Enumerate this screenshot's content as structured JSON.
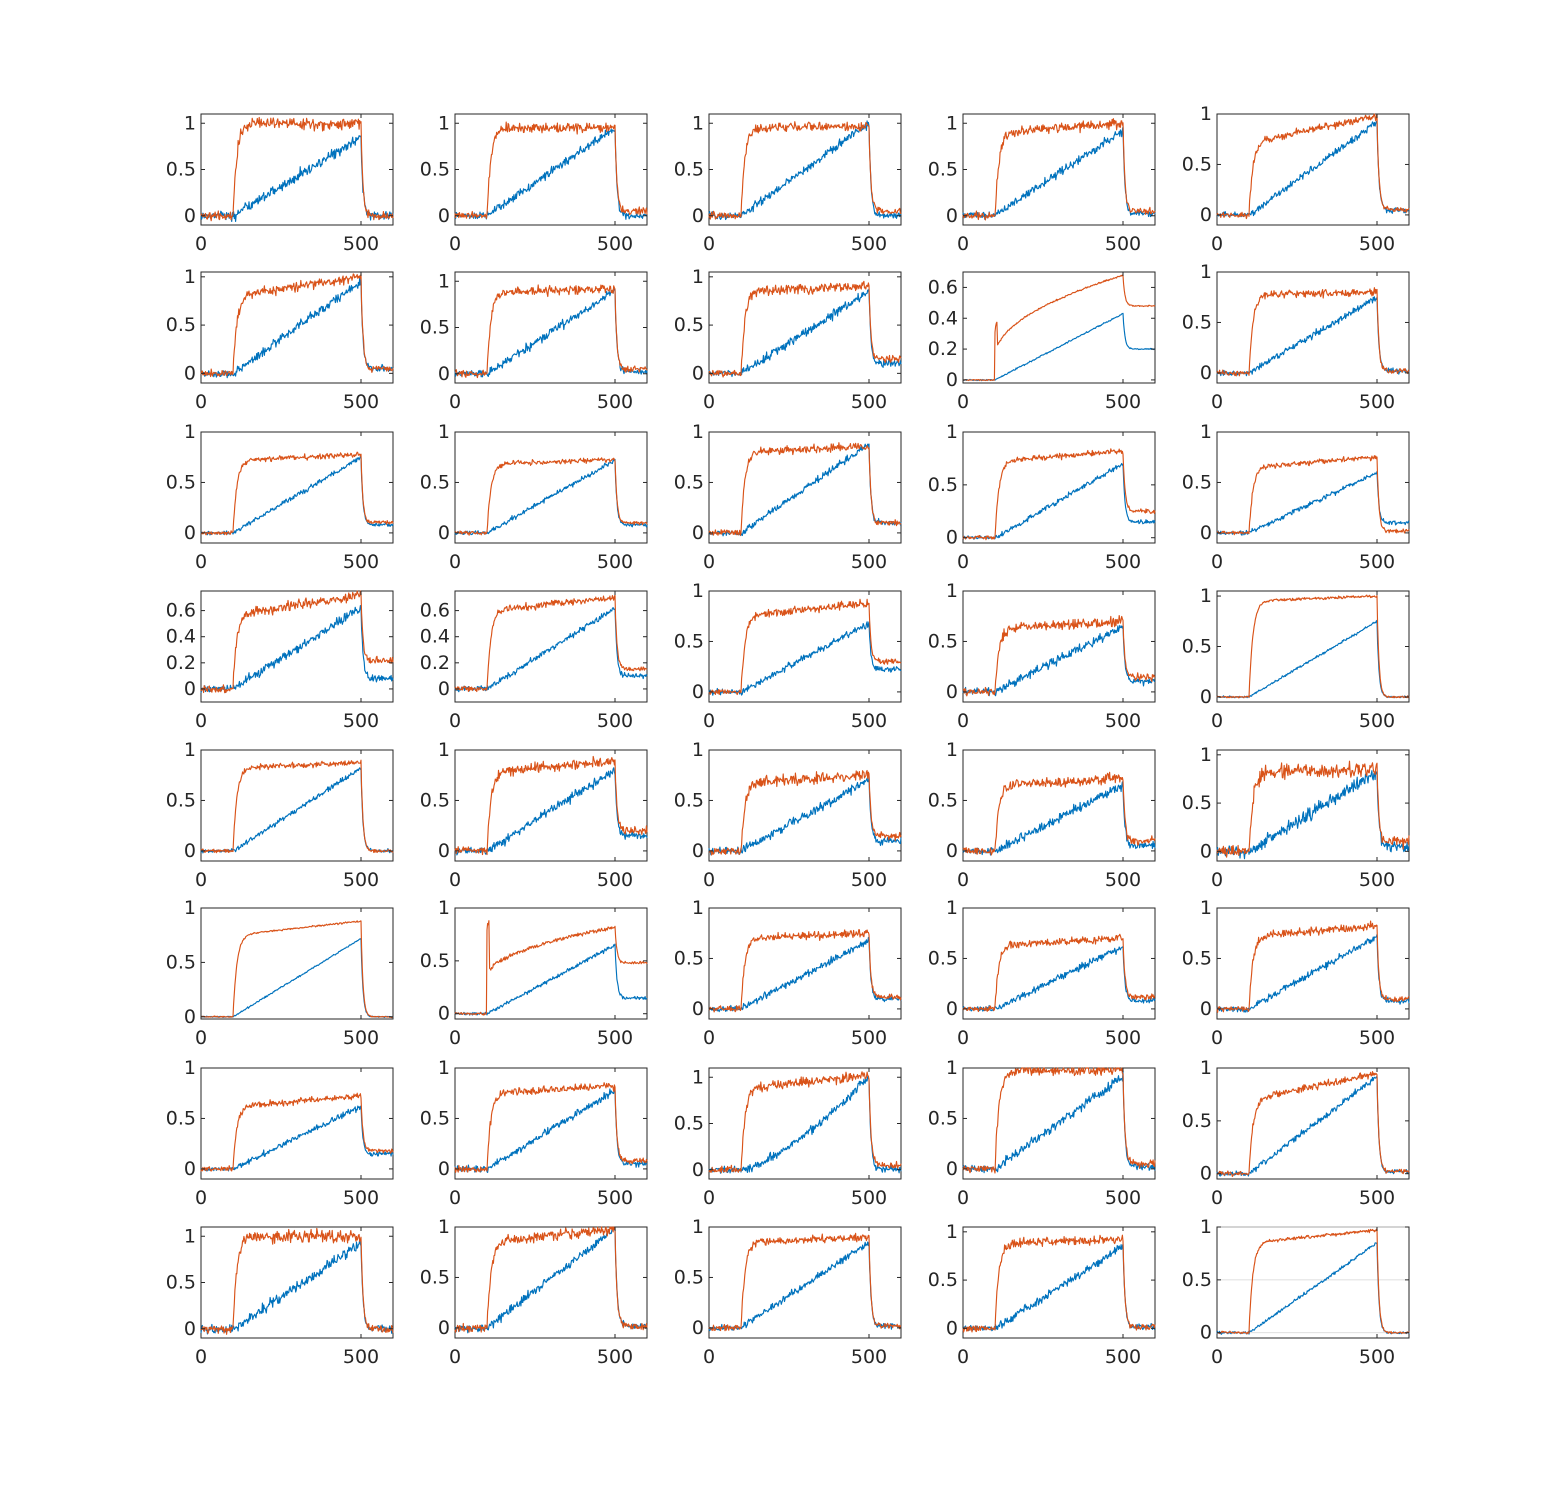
{
  "colors": {
    "series_1": "#0072BD",
    "series_2": "#D95319",
    "axes": "#262626",
    "grid": "#d4d4d4"
  },
  "chart_data": {
    "type": "line",
    "layout": "grid",
    "rows": 8,
    "cols": 5,
    "grid": false,
    "legend": "none",
    "x_range": [
      0,
      600
    ],
    "x_ticks": [
      0,
      500
    ],
    "x_tick_labels": [
      "0",
      "500"
    ],
    "series_names": [
      "",
      ""
    ],
    "common_shape": {
      "x_onset": 100,
      "x_offset": 500,
      "x_end": 600,
      "series_1": "linear ramp from onset to offset, then drop",
      "series_2": "fast rise at onset to a plateau, then drop at offset"
    },
    "panels": [
      {
        "ylim": [
          -0.1,
          1.1
        ],
        "yticks": [
          0,
          0.5,
          1
        ],
        "ytick_labels": [
          "0",
          "0.5",
          "1"
        ],
        "blue_end": 0.85,
        "red_level": 1.0,
        "red_end": 1.0,
        "blue_after": 0.0,
        "red_after": 0.0,
        "noise": 0.05
      },
      {
        "ylim": [
          -0.1,
          1.1
        ],
        "yticks": [
          0,
          0.5,
          1
        ],
        "ytick_labels": [
          "0",
          "0.5",
          "1"
        ],
        "blue_end": 0.95,
        "red_level": 0.95,
        "red_end": 0.95,
        "blue_after": 0.0,
        "red_after": 0.05,
        "noise": 0.04
      },
      {
        "ylim": [
          -0.1,
          1.1
        ],
        "yticks": [
          0,
          0.5,
          1
        ],
        "ytick_labels": [
          "0",
          "0.5",
          "1"
        ],
        "blue_end": 1.0,
        "red_level": 0.95,
        "red_end": 0.97,
        "blue_after": 0.0,
        "red_after": 0.05,
        "noise": 0.04
      },
      {
        "ylim": [
          -0.1,
          1.1
        ],
        "yticks": [
          0,
          0.5,
          1
        ],
        "ytick_labels": [
          "0",
          "0.5",
          "1"
        ],
        "blue_end": 0.92,
        "red_level": 0.9,
        "red_end": 1.0,
        "blue_after": 0.02,
        "red_after": 0.05,
        "noise": 0.04
      },
      {
        "ylim": [
          -0.1,
          1.0
        ],
        "yticks": [
          0,
          0.5,
          1
        ],
        "ytick_labels": [
          "0",
          "0.5",
          "1"
        ],
        "blue_end": 0.92,
        "red_level": 0.72,
        "red_end": 0.98,
        "blue_after": 0.05,
        "red_after": 0.05,
        "noise": 0.03
      },
      {
        "ylim": [
          -0.1,
          1.05
        ],
        "yticks": [
          0,
          0.5,
          1
        ],
        "ytick_labels": [
          "0",
          "0.5",
          "1"
        ],
        "blue_end": 0.95,
        "red_level": 0.8,
        "red_end": 1.0,
        "blue_after": 0.05,
        "red_after": 0.05,
        "noise": 0.04
      },
      {
        "ylim": [
          -0.1,
          1.1
        ],
        "yticks": [
          0,
          0.5,
          1
        ],
        "ytick_labels": [
          "0",
          "0.5",
          "1"
        ],
        "blue_end": 0.9,
        "red_level": 0.88,
        "red_end": 0.92,
        "blue_after": 0.02,
        "red_after": 0.05,
        "noise": 0.04
      },
      {
        "ylim": [
          -0.1,
          1.05
        ],
        "yticks": [
          0,
          0.5,
          1
        ],
        "ytick_labels": [
          "0",
          "0.5",
          "1"
        ],
        "blue_end": 0.85,
        "red_level": 0.85,
        "red_end": 0.9,
        "blue_after": 0.1,
        "red_after": 0.15,
        "noise": 0.04
      },
      {
        "ylim": [
          -0.02,
          0.7
        ],
        "yticks": [
          0,
          0.2,
          0.4,
          0.6
        ],
        "ytick_labels": [
          "0",
          "0.2",
          "0.4",
          "0.6"
        ],
        "blue_end": 0.43,
        "red_level": 0.15,
        "red_end": 0.68,
        "blue_after": 0.2,
        "red_after": 0.48,
        "noise": 0.004,
        "dip": 0.1
      },
      {
        "ylim": [
          -0.1,
          1.0
        ],
        "yticks": [
          0,
          0.5,
          1
        ],
        "ytick_labels": [
          "0",
          "0.5",
          "1"
        ],
        "blue_end": 0.75,
        "red_level": 0.78,
        "red_end": 0.8,
        "blue_after": 0.02,
        "red_after": 0.02,
        "noise": 0.03
      },
      {
        "ylim": [
          -0.1,
          1.0
        ],
        "yticks": [
          0,
          0.5,
          1
        ],
        "ytick_labels": [
          "0",
          "0.5",
          "1"
        ],
        "blue_end": 0.75,
        "red_level": 0.72,
        "red_end": 0.78,
        "blue_after": 0.08,
        "red_after": 0.1,
        "noise": 0.02
      },
      {
        "ylim": [
          -0.1,
          1.0
        ],
        "yticks": [
          0,
          0.5,
          1
        ],
        "ytick_labels": [
          "0",
          "0.5",
          "1"
        ],
        "blue_end": 0.72,
        "red_level": 0.68,
        "red_end": 0.73,
        "blue_after": 0.08,
        "red_after": 0.1,
        "noise": 0.02
      },
      {
        "ylim": [
          -0.1,
          1.0
        ],
        "yticks": [
          0,
          0.5,
          1
        ],
        "ytick_labels": [
          "0",
          "0.5",
          "1"
        ],
        "blue_end": 0.88,
        "red_level": 0.8,
        "red_end": 0.86,
        "blue_after": 0.1,
        "red_after": 0.1,
        "noise": 0.03
      },
      {
        "ylim": [
          -0.05,
          1.0
        ],
        "yticks": [
          0,
          0.5,
          1
        ],
        "ytick_labels": [
          "0",
          "0.5",
          "1"
        ],
        "blue_end": 0.7,
        "red_level": 0.72,
        "red_end": 0.82,
        "blue_after": 0.15,
        "red_after": 0.25,
        "noise": 0.02
      },
      {
        "ylim": [
          -0.1,
          1.0
        ],
        "yticks": [
          0,
          0.5,
          1
        ],
        "ytick_labels": [
          "0",
          "0.5",
          "1"
        ],
        "blue_end": 0.6,
        "red_level": 0.65,
        "red_end": 0.75,
        "blue_after": 0.1,
        "red_after": 0.02,
        "noise": 0.02
      },
      {
        "ylim": [
          -0.1,
          0.75
        ],
        "yticks": [
          0,
          0.2,
          0.4,
          0.6
        ],
        "ytick_labels": [
          "0",
          "0.2",
          "0.4",
          "0.6"
        ],
        "blue_end": 0.62,
        "red_level": 0.57,
        "red_end": 0.72,
        "blue_after": 0.08,
        "red_after": 0.22,
        "noise": 0.03
      },
      {
        "ylim": [
          -0.1,
          0.75
        ],
        "yticks": [
          0,
          0.2,
          0.4,
          0.6
        ],
        "ytick_labels": [
          "0",
          "0.2",
          "0.4",
          "0.6"
        ],
        "blue_end": 0.62,
        "red_level": 0.6,
        "red_end": 0.7,
        "blue_after": 0.1,
        "red_after": 0.15,
        "noise": 0.02
      },
      {
        "ylim": [
          -0.1,
          1.0
        ],
        "yticks": [
          0,
          0.5,
          1
        ],
        "ytick_labels": [
          "0",
          "0.5",
          "1"
        ],
        "blue_end": 0.68,
        "red_level": 0.75,
        "red_end": 0.88,
        "blue_after": 0.22,
        "red_after": 0.3,
        "noise": 0.03
      },
      {
        "ylim": [
          -0.1,
          1.0
        ],
        "yticks": [
          0,
          0.5,
          1
        ],
        "ytick_labels": [
          "0",
          "0.5",
          "1"
        ],
        "blue_end": 0.65,
        "red_level": 0.62,
        "red_end": 0.7,
        "blue_after": 0.1,
        "red_after": 0.15,
        "noise": 0.04
      },
      {
        "ylim": [
          -0.05,
          1.05
        ],
        "yticks": [
          0,
          0.5,
          1
        ],
        "ytick_labels": [
          "0",
          "0.5",
          "1"
        ],
        "blue_end": 0.75,
        "red_level": 0.95,
        "red_end": 1.0,
        "blue_after": 0.0,
        "red_after": 0.0,
        "noise": 0.01
      },
      {
        "ylim": [
          -0.1,
          1.0
        ],
        "yticks": [
          0,
          0.5,
          1
        ],
        "ytick_labels": [
          "0",
          "0.5",
          "1"
        ],
        "blue_end": 0.82,
        "red_level": 0.82,
        "red_end": 0.88,
        "blue_after": 0.0,
        "red_after": 0.0,
        "noise": 0.02
      },
      {
        "ylim": [
          -0.1,
          1.0
        ],
        "yticks": [
          0,
          0.5,
          1
        ],
        "ytick_labels": [
          "0",
          "0.5",
          "1"
        ],
        "blue_end": 0.8,
        "red_level": 0.78,
        "red_end": 0.9,
        "blue_after": 0.15,
        "red_after": 0.2,
        "noise": 0.04
      },
      {
        "ylim": [
          -0.1,
          1.0
        ],
        "yticks": [
          0,
          0.5,
          1
        ],
        "ytick_labels": [
          "0",
          "0.5",
          "1"
        ],
        "blue_end": 0.7,
        "red_level": 0.68,
        "red_end": 0.75,
        "blue_after": 0.1,
        "red_after": 0.15,
        "noise": 0.04
      },
      {
        "ylim": [
          -0.1,
          1.0
        ],
        "yticks": [
          0,
          0.5,
          1
        ],
        "ytick_labels": [
          "0",
          "0.5",
          "1"
        ],
        "blue_end": 0.65,
        "red_level": 0.65,
        "red_end": 0.72,
        "blue_after": 0.05,
        "red_after": 0.1,
        "noise": 0.04
      },
      {
        "ylim": [
          -0.1,
          1.05
        ],
        "yticks": [
          0,
          0.5,
          1
        ],
        "ytick_labels": [
          "0",
          "0.5",
          "1"
        ],
        "blue_end": 0.82,
        "red_level": 0.82,
        "red_end": 0.85,
        "blue_after": 0.05,
        "red_after": 0.1,
        "noise": 0.06
      },
      {
        "ylim": [
          -0.02,
          1.0
        ],
        "yticks": [
          0,
          0.5,
          1
        ],
        "ytick_labels": [
          "0",
          "0.5",
          "1"
        ],
        "blue_end": 0.72,
        "red_level": 0.75,
        "red_end": 0.88,
        "blue_after": 0.0,
        "red_after": 0.0,
        "noise": 0.006
      },
      {
        "ylim": [
          -0.05,
          1.0
        ],
        "yticks": [
          0,
          0.5,
          1
        ],
        "ytick_labels": [
          "0",
          "0.5",
          "1"
        ],
        "blue_end": 0.65,
        "red_level": 0.35,
        "red_end": 0.82,
        "blue_after": 0.15,
        "red_after": 0.48,
        "noise": 0.015,
        "dip": 0.28
      },
      {
        "ylim": [
          -0.1,
          1.0
        ],
        "yticks": [
          0,
          0.5,
          1
        ],
        "ytick_labels": [
          "0",
          "0.5",
          "1"
        ],
        "blue_end": 0.68,
        "red_level": 0.7,
        "red_end": 0.75,
        "blue_after": 0.1,
        "red_after": 0.12,
        "noise": 0.03
      },
      {
        "ylim": [
          -0.1,
          1.0
        ],
        "yticks": [
          0,
          0.5,
          1
        ],
        "ytick_labels": [
          "0",
          "0.5",
          "1"
        ],
        "blue_end": 0.62,
        "red_level": 0.63,
        "red_end": 0.7,
        "blue_after": 0.08,
        "red_after": 0.12,
        "noise": 0.03
      },
      {
        "ylim": [
          -0.1,
          1.0
        ],
        "yticks": [
          0,
          0.5,
          1
        ],
        "ytick_labels": [
          "0",
          "0.5",
          "1"
        ],
        "blue_end": 0.72,
        "red_level": 0.72,
        "red_end": 0.82,
        "blue_after": 0.08,
        "red_after": 0.1,
        "noise": 0.03
      },
      {
        "ylim": [
          -0.1,
          1.0
        ],
        "yticks": [
          0,
          0.5,
          1
        ],
        "ytick_labels": [
          "0",
          "0.5",
          "1"
        ],
        "blue_end": 0.62,
        "red_level": 0.62,
        "red_end": 0.72,
        "blue_after": 0.15,
        "red_after": 0.18,
        "noise": 0.025
      },
      {
        "ylim": [
          -0.1,
          1.0
        ],
        "yticks": [
          0,
          0.5,
          1
        ],
        "ytick_labels": [
          "0",
          "0.5",
          "1"
        ],
        "blue_end": 0.78,
        "red_level": 0.75,
        "red_end": 0.82,
        "blue_after": 0.05,
        "red_after": 0.08,
        "noise": 0.03
      },
      {
        "ylim": [
          -0.1,
          1.1
        ],
        "yticks": [
          0,
          0.5,
          1
        ],
        "ytick_labels": [
          "0",
          "0.5",
          "1"
        ],
        "blue_end": 1.0,
        "red_level": 0.88,
        "red_end": 1.02,
        "blue_after": 0.0,
        "red_after": 0.05,
        "noise": 0.04,
        "blue_curve": true
      },
      {
        "ylim": [
          -0.1,
          1.0
        ],
        "yticks": [
          0,
          0.5,
          1
        ],
        "ytick_labels": [
          "0",
          "0.5",
          "1"
        ],
        "blue_end": 0.92,
        "red_level": 0.97,
        "red_end": 0.98,
        "blue_after": 0.02,
        "red_after": 0.05,
        "noise": 0.04
      },
      {
        "ylim": [
          -0.05,
          1.0
        ],
        "yticks": [
          0,
          0.5,
          1
        ],
        "ytick_labels": [
          "0",
          "0.5",
          "1"
        ],
        "blue_end": 0.92,
        "red_level": 0.7,
        "red_end": 0.95,
        "blue_after": 0.02,
        "red_after": 0.02,
        "noise": 0.025
      },
      {
        "ylim": [
          -0.1,
          1.1
        ],
        "yticks": [
          0,
          0.5,
          1
        ],
        "ytick_labels": [
          "0",
          "0.5",
          "1"
        ],
        "blue_end": 0.92,
        "red_level": 1.0,
        "red_end": 1.0,
        "blue_after": 0.0,
        "red_after": 0.0,
        "noise": 0.05
      },
      {
        "ylim": [
          -0.1,
          1.0
        ],
        "yticks": [
          0,
          0.5,
          1
        ],
        "ytick_labels": [
          "0",
          "0.5",
          "1"
        ],
        "blue_end": 0.98,
        "red_level": 0.85,
        "red_end": 0.98,
        "blue_after": 0.02,
        "red_after": 0.02,
        "noise": 0.04
      },
      {
        "ylim": [
          -0.1,
          1.0
        ],
        "yticks": [
          0,
          0.5,
          1
        ],
        "ytick_labels": [
          "0",
          "0.5",
          "1"
        ],
        "blue_end": 0.85,
        "red_level": 0.85,
        "red_end": 0.9,
        "blue_after": 0.02,
        "red_after": 0.02,
        "noise": 0.03
      },
      {
        "ylim": [
          -0.1,
          1.05
        ],
        "yticks": [
          0,
          0.5,
          1
        ],
        "ytick_labels": [
          "0",
          "0.5",
          "1"
        ],
        "blue_end": 0.85,
        "red_level": 0.88,
        "red_end": 0.92,
        "blue_after": 0.02,
        "red_after": 0.02,
        "noise": 0.035
      },
      {
        "ylim": [
          -0.05,
          1.0
        ],
        "yticks": [
          0,
          0.5,
          1
        ],
        "ytick_labels": [
          "0",
          "0.5",
          "1"
        ],
        "blue_end": 0.85,
        "red_level": 0.85,
        "red_end": 0.97,
        "blue_after": 0.0,
        "red_after": 0.0,
        "noise": 0.012,
        "grid": true
      }
    ]
  }
}
